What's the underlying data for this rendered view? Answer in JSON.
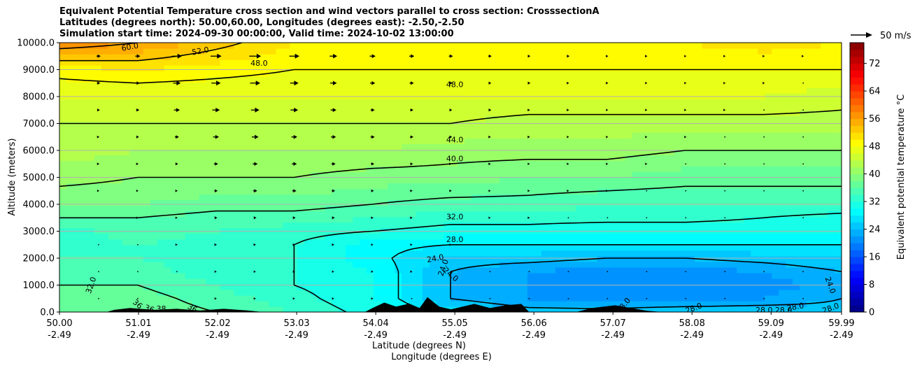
{
  "chart_data": {
    "type": "heatmap",
    "title_lines": [
      "Equivalent Potential Temperature cross section and wind vectors parallel to cross section: CrosssectionA",
      "Latitudes (degrees north): 50.00,60.00, Longitudes (degrees east): -2.50,-2.50",
      "Simulation start time: 2024-09-30 00:00:00, Valid time: 2024-10-02 13:00:00"
    ],
    "xlabel_lat": "Latitude (degrees N)",
    "xlabel_lon": "Longitude (degrees E)",
    "ylabel": "Altitude (meters)",
    "x_range": [
      50.0,
      59.99
    ],
    "ylim": [
      0,
      10000
    ],
    "x_ticks": [
      {
        "lat": "50.00",
        "lon": "-2.49",
        "value": 50.0
      },
      {
        "lat": "51.01",
        "lon": "-2.49",
        "value": 51.01
      },
      {
        "lat": "52.02",
        "lon": "-2.49",
        "value": 52.02
      },
      {
        "lat": "53.03",
        "lon": "-2.49",
        "value": 53.03
      },
      {
        "lat": "54.04",
        "lon": "-2.49",
        "value": 54.04
      },
      {
        "lat": "55.05",
        "lon": "-2.49",
        "value": 55.05
      },
      {
        "lat": "56.06",
        "lon": "-2.49",
        "value": 56.06
      },
      {
        "lat": "57.07",
        "lon": "-2.49",
        "value": 57.07
      },
      {
        "lat": "58.08",
        "lon": "-2.49",
        "value": 58.08
      },
      {
        "lat": "59.09",
        "lon": "-2.49",
        "value": 59.09
      },
      {
        "lat": "59.99",
        "lon": "-2.49",
        "value": 59.99
      }
    ],
    "y_ticks": [
      {
        "label": "0.0",
        "value": 0
      },
      {
        "label": "1000.0",
        "value": 1000
      },
      {
        "label": "2000.0",
        "value": 2000
      },
      {
        "label": "3000.0",
        "value": 3000
      },
      {
        "label": "4000.0",
        "value": 4000
      },
      {
        "label": "5000.0",
        "value": 5000
      },
      {
        "label": "6000.0",
        "value": 6000
      },
      {
        "label": "7000.0",
        "value": 7000
      },
      {
        "label": "8000.0",
        "value": 8000
      },
      {
        "label": "9000.0",
        "value": 9000
      },
      {
        "label": "10000.0",
        "value": 10000
      }
    ],
    "grid": true,
    "colorbar": {
      "label": "Equivalent potential temperature °C",
      "min": 0,
      "max": 78,
      "step": 2,
      "ticks": [
        "0",
        "8",
        "16",
        "24",
        "32",
        "40",
        "48",
        "56",
        "64",
        "72"
      ],
      "tick_values": [
        0,
        8,
        16,
        24,
        32,
        40,
        48,
        56,
        64,
        72
      ],
      "colormap": "jet"
    },
    "quiver_key": {
      "label": "50 m/s",
      "speed": 50
    },
    "theta_e_field": [
      {
        "alt": 0,
        "values": [
          37,
          37.5,
          36,
          34,
          31,
          27,
          25,
          25,
          26,
          26,
          25
        ]
      },
      {
        "alt": 500,
        "values": [
          37,
          37,
          35,
          33,
          30,
          24,
          22,
          21,
          21,
          22,
          24
        ]
      },
      {
        "alt": 1000,
        "values": [
          36,
          36,
          34,
          32,
          30,
          24,
          22,
          21,
          20,
          21,
          23
        ]
      },
      {
        "alt": 1500,
        "values": [
          35,
          35,
          33,
          32,
          30,
          24,
          22,
          21,
          21,
          22,
          24
        ]
      },
      {
        "alt": 2000,
        "values": [
          34,
          34,
          33,
          32,
          29,
          25,
          25,
          24,
          24,
          25,
          26
        ]
      },
      {
        "alt": 2500,
        "values": [
          33,
          34,
          33,
          32,
          29,
          28,
          28,
          28,
          28,
          28,
          28
        ]
      },
      {
        "alt": 3000,
        "values": [
          33,
          35,
          34,
          33,
          32,
          31,
          31,
          30,
          30,
          30,
          30
        ]
      },
      {
        "alt": 3500,
        "values": [
          36,
          36,
          35,
          35,
          34,
          33,
          33,
          33,
          33,
          32,
          31
        ]
      },
      {
        "alt": 4000,
        "values": [
          38,
          38,
          37,
          37,
          36,
          35,
          35,
          34,
          34,
          34,
          34
        ]
      },
      {
        "alt": 5000,
        "values": [
          41,
          40,
          40,
          40,
          39,
          39,
          38,
          38,
          37,
          37,
          37
        ]
      },
      {
        "alt": 6000,
        "values": [
          43,
          42,
          42,
          42,
          42,
          41,
          41,
          41,
          40,
          40,
          40
        ]
      },
      {
        "alt": 7000,
        "values": [
          44,
          44,
          44,
          44,
          44,
          44,
          43,
          43,
          43,
          43,
          43
        ]
      },
      {
        "alt": 8000,
        "values": [
          46,
          46,
          46,
          46,
          46,
          46,
          46,
          46,
          46,
          46,
          45
        ]
      },
      {
        "alt": 9000,
        "values": [
          49,
          50,
          49,
          48,
          48,
          48,
          48,
          48,
          48,
          48,
          48
        ]
      },
      {
        "alt": 10000,
        "values": [
          58,
          56,
          53,
          50,
          49,
          49,
          49,
          49,
          50,
          51,
          50
        ]
      }
    ],
    "contour_labels": [
      {
        "text": "60.0",
        "lat": 50.9,
        "alt": 9850,
        "angle": -10
      },
      {
        "text": "52.0",
        "lat": 51.8,
        "alt": 9700,
        "angle": -10
      },
      {
        "text": "48.0",
        "lat": 52.55,
        "alt": 9250,
        "angle": 0
      },
      {
        "text": "48.0",
        "lat": 55.05,
        "alt": 8450,
        "angle": 0
      },
      {
        "text": "44.0",
        "lat": 55.05,
        "alt": 6400,
        "angle": 0
      },
      {
        "text": "40.0",
        "lat": 55.05,
        "alt": 5700,
        "angle": 0
      },
      {
        "text": "32.0",
        "lat": 55.05,
        "alt": 3550,
        "angle": 0
      },
      {
        "text": "28.0",
        "lat": 55.05,
        "alt": 2700,
        "angle": 0
      },
      {
        "text": "24.0",
        "lat": 54.8,
        "alt": 2000,
        "angle": -10
      },
      {
        "text": "24.0",
        "lat": 54.9,
        "alt": 1650,
        "angle": -70
      },
      {
        "text": "24.0",
        "lat": 55.0,
        "alt": 1400,
        "angle": 40
      },
      {
        "text": "32.0",
        "lat": 50.4,
        "alt": 1000,
        "angle": -70
      },
      {
        "text": "36",
        "lat": 51.0,
        "alt": 300,
        "angle": 40
      },
      {
        "text": "36",
        "lat": 51.15,
        "alt": 130,
        "angle": 20
      },
      {
        "text": "38",
        "lat": 51.3,
        "alt": 130,
        "angle": 0
      },
      {
        "text": "36",
        "lat": 51.7,
        "alt": 150,
        "angle": 30
      },
      {
        "text": "28.0",
        "lat": 57.2,
        "alt": 250,
        "angle": -50
      },
      {
        "text": "28.0",
        "lat": 58.1,
        "alt": 150,
        "angle": -20
      },
      {
        "text": "28.0",
        "lat": 59.0,
        "alt": 80,
        "angle": 0
      },
      {
        "text": "28.0",
        "lat": 59.25,
        "alt": 80,
        "angle": 0
      },
      {
        "text": "28.0",
        "lat": 59.4,
        "alt": 200,
        "angle": -10
      },
      {
        "text": "24.0",
        "lat": 59.85,
        "alt": 1000,
        "angle": 70
      },
      {
        "text": "28.0",
        "lat": 59.85,
        "alt": 150,
        "angle": -20
      }
    ],
    "wind_columns": [
      {
        "lat": 50.5,
        "u": [
          0.5,
          0.5,
          0.5,
          0.5,
          1,
          2,
          2,
          3,
          4,
          5
        ]
      },
      {
        "lat": 51.0,
        "u": [
          0.5,
          0.5,
          0.5,
          1,
          1,
          2,
          3,
          4,
          5,
          6
        ]
      },
      {
        "lat": 51.5,
        "u": [
          0.5,
          0.5,
          1,
          1,
          2,
          3,
          5,
          7,
          9,
          12
        ]
      },
      {
        "lat": 52.0,
        "u": [
          1,
          1,
          2,
          3,
          4,
          5,
          7,
          9,
          11,
          13
        ]
      },
      {
        "lat": 52.5,
        "u": [
          1,
          1,
          2,
          3,
          5,
          6,
          8,
          10,
          12,
          14
        ]
      },
      {
        "lat": 53.0,
        "u": [
          1,
          1,
          2,
          3,
          5,
          6,
          7,
          9,
          10,
          12
        ]
      },
      {
        "lat": 53.5,
        "u": [
          1,
          1,
          2,
          3,
          4,
          5,
          6,
          7,
          8,
          9
        ]
      },
      {
        "lat": 54.0,
        "u": [
          1,
          1,
          1,
          2,
          3,
          4,
          5,
          5,
          6,
          7
        ]
      },
      {
        "lat": 54.5,
        "u": [
          0.5,
          1,
          1,
          2,
          2,
          3,
          4,
          4,
          5,
          6
        ]
      },
      {
        "lat": 55.0,
        "u": [
          0.5,
          0.5,
          1,
          1,
          2,
          2,
          3,
          3,
          4,
          5
        ]
      },
      {
        "lat": 55.5,
        "u": [
          0.5,
          0.5,
          0.5,
          1,
          1,
          2,
          2,
          3,
          3,
          4
        ]
      },
      {
        "lat": 56.0,
        "u": [
          0.5,
          0.5,
          0.5,
          1,
          1,
          1,
          2,
          2,
          3,
          3
        ]
      },
      {
        "lat": 56.5,
        "u": [
          0.5,
          0.5,
          0.5,
          0.5,
          1,
          1,
          1,
          2,
          2,
          3
        ]
      },
      {
        "lat": 57.0,
        "u": [
          0.5,
          0.5,
          0.5,
          0.5,
          1,
          1,
          1,
          1,
          2,
          2
        ]
      },
      {
        "lat": 57.5,
        "u": [
          0.5,
          0.5,
          0.5,
          0.5,
          0.5,
          1,
          1,
          1,
          1,
          2
        ]
      },
      {
        "lat": 58.0,
        "u": [
          0.5,
          0.5,
          0.5,
          0.5,
          0.5,
          0.5,
          1,
          1,
          1,
          1
        ]
      },
      {
        "lat": 58.5,
        "u": [
          0.5,
          0.5,
          0.5,
          0.5,
          0.5,
          0.5,
          0.5,
          1,
          1,
          1
        ]
      },
      {
        "lat": 59.0,
        "u": [
          0.5,
          0.5,
          0.5,
          0.5,
          0.5,
          0.5,
          0.5,
          0.5,
          1,
          1
        ]
      },
      {
        "lat": 59.5,
        "u": [
          0.5,
          0.5,
          0.5,
          0.5,
          0.5,
          0.5,
          0.5,
          0.5,
          0.5,
          1
        ]
      }
    ],
    "wind_levels_alt": [
      500,
      1500,
      2500,
      3500,
      4500,
      5500,
      6500,
      7500,
      8500,
      9500
    ],
    "terrain": [
      {
        "lat": 50.0,
        "alt": 0
      },
      {
        "lat": 50.6,
        "alt": 0
      },
      {
        "lat": 50.7,
        "alt": 80
      },
      {
        "lat": 50.9,
        "alt": 150
      },
      {
        "lat": 51.2,
        "alt": 80
      },
      {
        "lat": 51.5,
        "alt": 120
      },
      {
        "lat": 51.8,
        "alt": 60
      },
      {
        "lat": 52.1,
        "alt": 120
      },
      {
        "lat": 52.4,
        "alt": 60
      },
      {
        "lat": 52.6,
        "alt": 0
      },
      {
        "lat": 53.9,
        "alt": 0
      },
      {
        "lat": 54.0,
        "alt": 150
      },
      {
        "lat": 54.15,
        "alt": 350
      },
      {
        "lat": 54.3,
        "alt": 200
      },
      {
        "lat": 54.45,
        "alt": 300
      },
      {
        "lat": 54.6,
        "alt": 150
      },
      {
        "lat": 54.7,
        "alt": 550
      },
      {
        "lat": 54.85,
        "alt": 200
      },
      {
        "lat": 55.0,
        "alt": 100
      },
      {
        "lat": 55.3,
        "alt": 300
      },
      {
        "lat": 55.5,
        "alt": 150
      },
      {
        "lat": 55.7,
        "alt": 250
      },
      {
        "lat": 55.9,
        "alt": 300
      },
      {
        "lat": 56.0,
        "alt": 0
      },
      {
        "lat": 56.6,
        "alt": 0
      },
      {
        "lat": 56.8,
        "alt": 150
      },
      {
        "lat": 57.1,
        "alt": 250
      },
      {
        "lat": 57.3,
        "alt": 150
      },
      {
        "lat": 57.5,
        "alt": 50
      },
      {
        "lat": 57.7,
        "alt": 0
      },
      {
        "lat": 59.99,
        "alt": 0
      }
    ]
  }
}
